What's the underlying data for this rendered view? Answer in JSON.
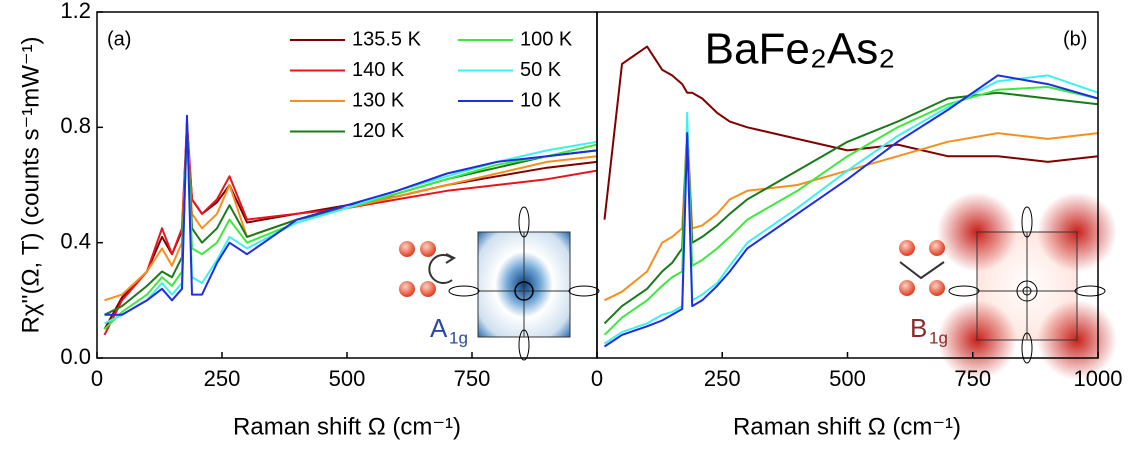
{
  "chart_data": [
    {
      "type": "line",
      "panel_label": "(a)",
      "x_label": "Raman shift Ω (cm⁻¹)",
      "y_label": "Rχ''(Ω, T) (counts s⁻¹mW⁻¹)",
      "xlim": [
        0,
        1000
      ],
      "xticks": [
        0,
        250,
        500,
        750
      ],
      "ylim": [
        0,
        1.2
      ],
      "yticks": [
        {
          "value": 0,
          "label": "0.0"
        },
        0.4,
        0.8,
        1.2
      ],
      "inset_label": {
        "text": "A",
        "subscript": "1g",
        "color": "#2b4a9c"
      },
      "x": [
        15,
        50,
        100,
        130,
        150,
        170,
        180,
        190,
        210,
        240,
        265,
        300,
        400,
        500,
        600,
        700,
        800,
        900,
        1000
      ],
      "series": [
        {
          "name": "135.5 K",
          "color": "#800000",
          "values": [
            0.1,
            0.21,
            0.3,
            0.42,
            0.36,
            0.44,
            0.8,
            0.55,
            0.5,
            0.54,
            0.6,
            0.47,
            0.5,
            0.53,
            0.56,
            0.6,
            0.63,
            0.66,
            0.68
          ]
        },
        {
          "name": "140 K",
          "color": "#e8141c",
          "values": [
            0.08,
            0.2,
            0.3,
            0.45,
            0.36,
            0.45,
            0.82,
            0.55,
            0.5,
            0.55,
            0.63,
            0.48,
            0.5,
            0.52,
            0.55,
            0.58,
            0.6,
            0.62,
            0.65
          ]
        },
        {
          "name": "130 K",
          "color": "#f5901e",
          "values": [
            0.2,
            0.22,
            0.3,
            0.38,
            0.32,
            0.4,
            0.8,
            0.5,
            0.45,
            0.5,
            0.6,
            0.42,
            0.48,
            0.52,
            0.56,
            0.6,
            0.64,
            0.68,
            0.7
          ]
        },
        {
          "name": "120 K",
          "color": "#1a7a1a",
          "values": [
            0.15,
            0.18,
            0.25,
            0.3,
            0.28,
            0.35,
            0.8,
            0.45,
            0.4,
            0.45,
            0.53,
            0.42,
            0.48,
            0.52,
            0.57,
            0.62,
            0.66,
            0.7,
            0.72
          ]
        },
        {
          "name": "100 K",
          "color": "#3ee83e",
          "values": [
            0.1,
            0.16,
            0.22,
            0.28,
            0.25,
            0.3,
            0.8,
            0.38,
            0.36,
            0.4,
            0.48,
            0.4,
            0.47,
            0.52,
            0.57,
            0.62,
            0.67,
            0.7,
            0.74
          ]
        },
        {
          "name": "50 K",
          "color": "#3ff0f0",
          "values": [
            0.12,
            0.15,
            0.2,
            0.26,
            0.22,
            0.26,
            0.82,
            0.28,
            0.26,
            0.34,
            0.42,
            0.38,
            0.47,
            0.52,
            0.58,
            0.63,
            0.68,
            0.72,
            0.75
          ]
        },
        {
          "name": "10 K",
          "color": "#1f2ee0",
          "values": [
            0.15,
            0.15,
            0.2,
            0.24,
            0.2,
            0.24,
            0.84,
            0.22,
            0.22,
            0.33,
            0.4,
            0.36,
            0.48,
            0.53,
            0.58,
            0.64,
            0.68,
            0.7,
            0.72
          ]
        }
      ]
    },
    {
      "type": "line",
      "panel_label": "(b)",
      "title": "BaFe₂As₂",
      "x_label": "Raman shift Ω (cm⁻¹)",
      "xlim": [
        0,
        1000
      ],
      "xticks": [
        0,
        250,
        500,
        750,
        1000
      ],
      "ylim": [
        0,
        1.2
      ],
      "inset_label": {
        "text": "B",
        "subscript": "1g",
        "color": "#8b2a2a"
      },
      "x": [
        15,
        50,
        100,
        130,
        150,
        170,
        180,
        190,
        210,
        240,
        265,
        300,
        400,
        500,
        600,
        700,
        800,
        900,
        1000
      ],
      "series": [
        {
          "color": "#800000",
          "values": [
            0.48,
            1.02,
            1.08,
            1.0,
            0.98,
            0.95,
            0.92,
            0.92,
            0.9,
            0.85,
            0.82,
            0.8,
            0.76,
            0.72,
            0.74,
            0.7,
            0.7,
            0.68,
            0.7
          ]
        },
        {
          "color": "#f5901e",
          "values": [
            0.2,
            0.23,
            0.3,
            0.4,
            0.42,
            0.45,
            0.8,
            0.45,
            0.46,
            0.5,
            0.55,
            0.58,
            0.6,
            0.65,
            0.7,
            0.75,
            0.78,
            0.76,
            0.78
          ]
        },
        {
          "color": "#1a7a1a",
          "values": [
            0.12,
            0.18,
            0.24,
            0.3,
            0.33,
            0.38,
            0.8,
            0.4,
            0.42,
            0.46,
            0.5,
            0.55,
            0.65,
            0.75,
            0.82,
            0.9,
            0.92,
            0.9,
            0.88
          ]
        },
        {
          "color": "#3ee83e",
          "values": [
            0.08,
            0.14,
            0.2,
            0.25,
            0.28,
            0.3,
            0.8,
            0.32,
            0.34,
            0.38,
            0.42,
            0.48,
            0.58,
            0.7,
            0.8,
            0.88,
            0.93,
            0.94,
            0.9
          ]
        },
        {
          "color": "#3ff0f0",
          "values": [
            0.05,
            0.09,
            0.12,
            0.15,
            0.16,
            0.18,
            0.85,
            0.2,
            0.22,
            0.26,
            0.32,
            0.4,
            0.52,
            0.65,
            0.77,
            0.87,
            0.96,
            0.98,
            0.92
          ]
        },
        {
          "color": "#1f2ee0",
          "values": [
            0.04,
            0.08,
            0.11,
            0.13,
            0.15,
            0.17,
            0.78,
            0.18,
            0.2,
            0.25,
            0.3,
            0.38,
            0.5,
            0.62,
            0.75,
            0.86,
            0.98,
            0.95,
            0.9
          ]
        }
      ]
    }
  ]
}
